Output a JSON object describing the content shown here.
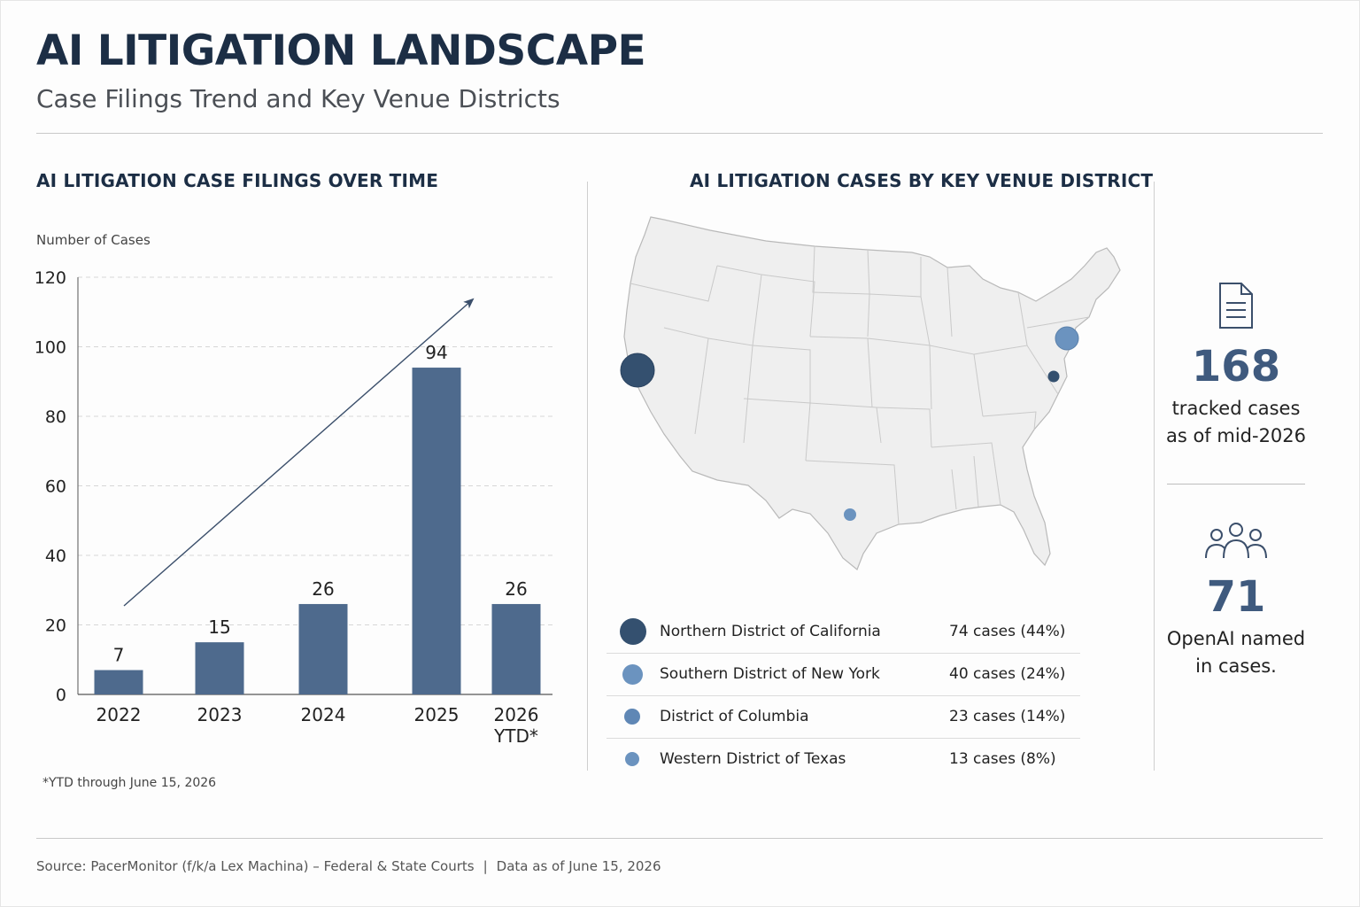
{
  "header": {
    "title": "AI LITIGATION LANDSCAPE",
    "subtitle": "Case Filings Trend and Key Venue Districts"
  },
  "chart_data": {
    "type": "bar",
    "title": "AI LITIGATION CASE FILINGS OVER TIME",
    "ylabel": "Number of Cases",
    "xlabel": "",
    "categories": [
      "2022",
      "2023",
      "2024",
      "2025",
      "2026 YTD*"
    ],
    "values": [
      7,
      15,
      26,
      94,
      26
    ],
    "ylim": [
      0,
      120
    ],
    "yticks": [
      0,
      20,
      40,
      60,
      80,
      100,
      120
    ],
    "grid": true,
    "bar_color": "#4e6a8d",
    "annotation": "upward trend arrow",
    "footnote": "*YTD through June 15, 2026"
  },
  "map": {
    "title": "AI LITIGATION CASES BY KEY VENUE DISTRICT",
    "districts": [
      {
        "name": "Northern District of California",
        "cases": "74 cases (44%)",
        "color": "#34506f"
      },
      {
        "name": "Southern District of New York",
        "cases": "40 cases (24%)",
        "color": "#6b93bf"
      },
      {
        "name": "District of Columbia",
        "cases": "23 cases (14%)",
        "color": "#5f87b5"
      },
      {
        "name": "Western District of Texas",
        "cases": "13 cases (8%)",
        "color": "#6b93bf"
      }
    ]
  },
  "stats": [
    {
      "icon": "document-icon",
      "value": "168",
      "label_line1": "tracked cases",
      "label_line2": "as of mid-2026"
    },
    {
      "icon": "people-icon",
      "value": "71",
      "label_line1": "OpenAI named",
      "label_line2": "in cases."
    }
  ],
  "footer": {
    "source": "Source: PacerMonitor (f/k/a Lex Machina) – Federal & State Courts",
    "separator": "|",
    "as_of": "Data as of June 15, 2026"
  }
}
